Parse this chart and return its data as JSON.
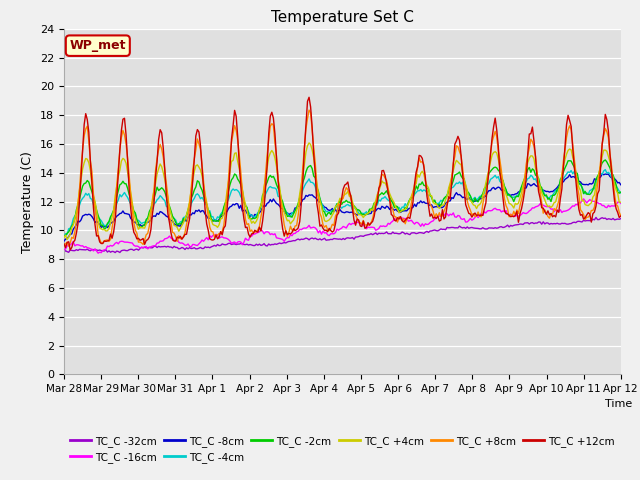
{
  "title": "Temperature Set C",
  "xlabel": "Time",
  "ylabel": "Temperature (C)",
  "ylim": [
    0,
    24
  ],
  "yticks": [
    0,
    2,
    4,
    6,
    8,
    10,
    12,
    14,
    16,
    18,
    20,
    22,
    24
  ],
  "plot_bg": "#e0e0e0",
  "fig_bg": "#f0f0f0",
  "series_colors": {
    "TC_C -32cm": "#9900cc",
    "TC_C -16cm": "#ff00ff",
    "TC_C -8cm": "#0000cc",
    "TC_C -4cm": "#00cccc",
    "TC_C -2cm": "#00cc00",
    "TC_C +4cm": "#cccc00",
    "TC_C +8cm": "#ff8800",
    "TC_C +12cm": "#cc0000"
  },
  "annotation_text": "WP_met",
  "annotation_bg": "#ffffcc",
  "annotation_border": "#cc0000",
  "xtick_labels": [
    "Mar 28",
    "Mar 29",
    "Mar 30",
    "Mar 31",
    "Apr 1",
    "Apr 2",
    "Apr 3",
    "Apr 4",
    "Apr 5",
    "Apr 6",
    "Apr 7",
    "Apr 8",
    "Apr 9",
    "Apr 10",
    "Apr 11",
    "Apr 12"
  ]
}
